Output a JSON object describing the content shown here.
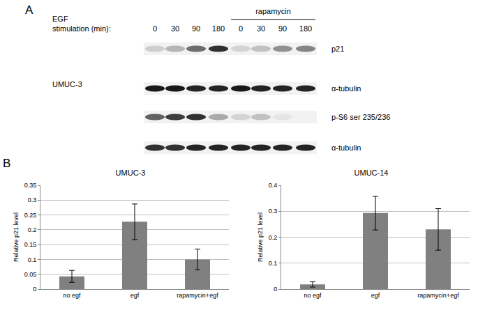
{
  "panel_a": {
    "label": "A",
    "stimulation_label": [
      "EGF",
      "stimulation (min):"
    ],
    "treatment": "rapamycin",
    "lanes": [
      "0",
      "30",
      "90",
      "180",
      "0",
      "30",
      "90",
      "180"
    ],
    "cell_line": "UMUC-3",
    "blot_rows": [
      {
        "name": "p21",
        "bands": [
          0.15,
          0.25,
          0.55,
          0.8,
          0.12,
          0.2,
          0.4,
          0.45
        ]
      },
      {
        "name": "α-tubulin",
        "bands": [
          0.9,
          0.9,
          0.85,
          0.85,
          0.9,
          0.85,
          0.85,
          0.85
        ]
      },
      {
        "name": "p-S6 ser 235/236",
        "bands": [
          0.6,
          0.75,
          0.8,
          0.3,
          0.12,
          0.2,
          0.05,
          0.0
        ]
      },
      {
        "name": "α-tubulin",
        "bands": [
          0.8,
          0.8,
          0.85,
          0.85,
          0.85,
          0.85,
          0.85,
          0.85
        ]
      }
    ]
  },
  "panel_b": {
    "label": "B"
  },
  "chart_data": [
    {
      "type": "bar",
      "title": "UMUC-3",
      "y_label": "Relative p21 level",
      "categories": [
        "no egf",
        "egf",
        "rapamycin+egf"
      ],
      "values": [
        0.043,
        0.227,
        0.1
      ],
      "error": [
        0.02,
        0.06,
        0.035
      ],
      "color": "#808080",
      "ylim": [
        0,
        0.35
      ],
      "yticks": [
        0,
        0.05,
        0.1,
        0.15,
        0.2,
        0.25,
        0.3,
        0.35
      ],
      "grid": true
    },
    {
      "type": "bar",
      "title": "UMUC-14",
      "y_label": "Relative p21 level",
      "categories": [
        "no egf",
        "egf",
        "rapamycin+egf"
      ],
      "values": [
        0.018,
        0.293,
        0.23
      ],
      "error": [
        0.01,
        0.065,
        0.08
      ],
      "color": "#808080",
      "ylim": [
        0,
        0.4
      ],
      "yticks": [
        0,
        0.1,
        0.2,
        0.3,
        0.4
      ],
      "grid": true
    }
  ]
}
